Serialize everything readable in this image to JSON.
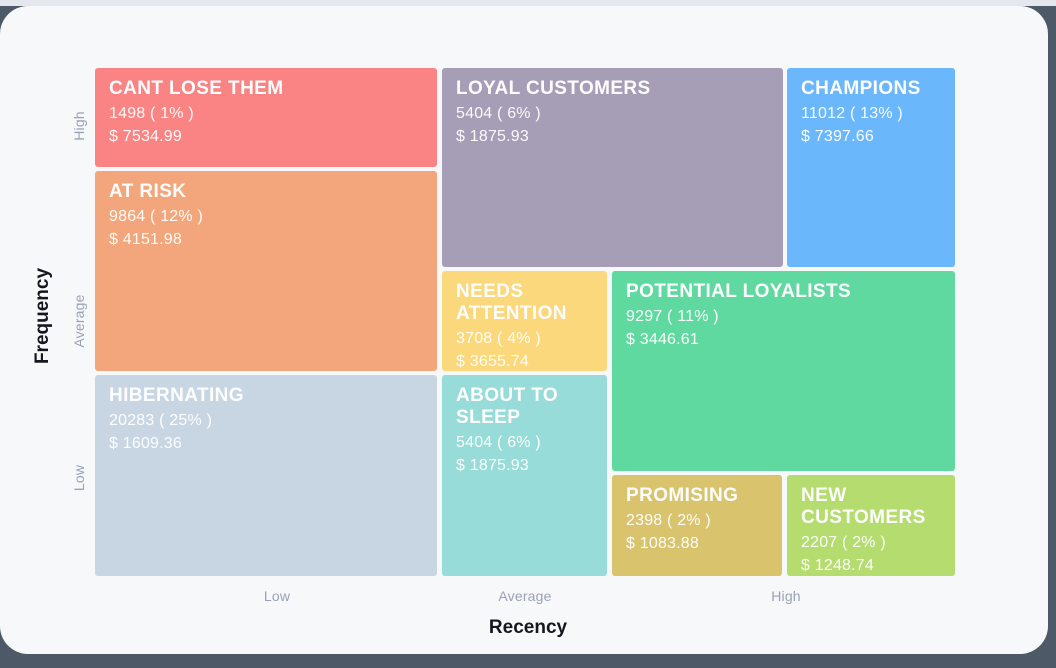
{
  "page": {
    "background_color": "#4d5966",
    "card_color": "#f7f8fa",
    "top_strip_color": "#e4e7ee"
  },
  "chart_data": {
    "type": "treemap",
    "subtype": "rfm-segmentation-matrix",
    "xlabel": "Recency",
    "ylabel": "Frequency",
    "x_ticks": [
      "Low",
      "Average",
      "High"
    ],
    "y_ticks": [
      "High",
      "Average",
      "Low"
    ],
    "legend": "none",
    "grid": "off",
    "tick_color": "#99a1b5",
    "axis_title_color": "#14171d",
    "segments": [
      {
        "name": "CANT LOSE THEM",
        "customers": 1498,
        "percent": 1,
        "avg_monetary": 7534.99,
        "count_label": "1498 ( 1% )",
        "value_label": "$ 7534.99",
        "color": "#fa8383",
        "recency": "Low",
        "frequency": "High"
      },
      {
        "name": "LOYAL CUSTOMERS",
        "customers": 5404,
        "percent": 6,
        "avg_monetary": 1875.93,
        "count_label": "5404 ( 6% )",
        "value_label": "$ 1875.93",
        "color": "#a69db6",
        "recency": "Average",
        "frequency": "High"
      },
      {
        "name": "CHAMPIONS",
        "customers": 11012,
        "percent": 13,
        "avg_monetary": 7397.66,
        "count_label": "11012 ( 13% )",
        "value_label": "$ 7397.66",
        "color": "#6ab7fb",
        "recency": "High",
        "frequency": "High"
      },
      {
        "name": "AT RISK",
        "customers": 9864,
        "percent": 12,
        "avg_monetary": 4151.98,
        "count_label": "9864 ( 12% )",
        "value_label": "$ 4151.98",
        "color": "#f3a67b",
        "recency": "Low",
        "frequency": "Average"
      },
      {
        "name": "NEEDS ATTENTION",
        "customers": 3708,
        "percent": 4,
        "avg_monetary": 3655.74,
        "count_label": "3708 ( 4% )",
        "value_label": "$ 3655.74",
        "color": "#fbd87b",
        "recency": "Average",
        "frequency": "Average"
      },
      {
        "name": "POTENTIAL LOYALISTS",
        "customers": 9297,
        "percent": 11,
        "avg_monetary": 3446.61,
        "count_label": "9297 ( 11% )",
        "value_label": "$ 3446.61",
        "color": "#5fd9a0",
        "recency": "High",
        "frequency": "Average"
      },
      {
        "name": "HIBERNATING",
        "customers": 20283,
        "percent": 25,
        "avg_monetary": 1609.36,
        "count_label": "20283 ( 25% )",
        "value_label": "$ 1609.36",
        "color": "#c8d6e3",
        "recency": "Low",
        "frequency": "Low"
      },
      {
        "name": "ABOUT TO SLEEP",
        "customers": 5404,
        "percent": 6,
        "avg_monetary": 1875.93,
        "count_label": "5404 ( 6% )",
        "value_label": "$ 1875.93",
        "color": "#97dcd8",
        "recency": "Average",
        "frequency": "Low"
      },
      {
        "name": "PROMISING",
        "customers": 2398,
        "percent": 2,
        "avg_monetary": 1083.88,
        "count_label": "2398 ( 2% )",
        "value_label": "$ 1083.88",
        "color": "#d9c46d",
        "recency": "High",
        "frequency": "Low"
      },
      {
        "name": "NEW CUSTOMERS",
        "customers": 2207,
        "percent": 2,
        "avg_monetary": 1248.74,
        "count_label": "2207 ( 2% )",
        "value_label": "$ 1248.74",
        "color": "#b5dc6e",
        "recency": "High",
        "frequency": "Low"
      }
    ]
  }
}
